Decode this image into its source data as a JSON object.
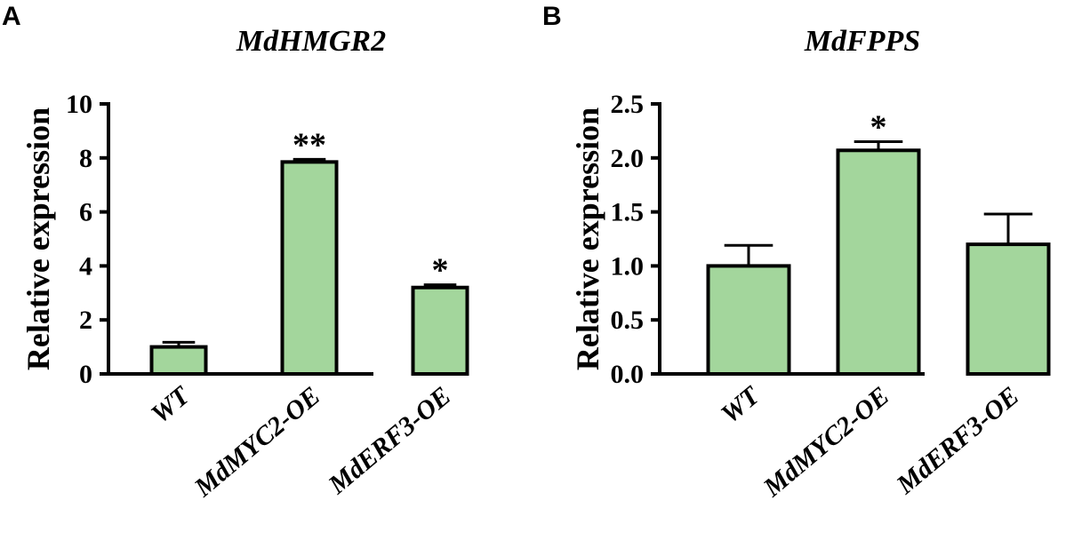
{
  "panels": [
    {
      "letter": "A",
      "chart_data": {
        "type": "bar",
        "title": "MdHMGR2",
        "xlabel": "",
        "ylabel": "Relative expression",
        "categories": [
          "WT",
          "MdMYC2-OE",
          "MdERF3-OE"
        ],
        "values": [
          1.0,
          7.85,
          3.2
        ],
        "errors": [
          0.17,
          0.1,
          0.1
        ],
        "significance": [
          "",
          "**",
          "*"
        ],
        "ylim": [
          0,
          10
        ],
        "yticks": [
          0,
          2,
          4,
          6,
          8,
          10
        ],
        "ytick_labels": [
          "0",
          "2",
          "4",
          "6",
          "8",
          "10"
        ],
        "bar_color": "#a3d69c",
        "grid": false
      }
    },
    {
      "letter": "B",
      "chart_data": {
        "type": "bar",
        "title": "MdFPPS",
        "xlabel": "",
        "ylabel": "Relative expression",
        "categories": [
          "WT",
          "MdMYC2-OE",
          "MdERF3-OE"
        ],
        "values": [
          1.0,
          2.07,
          1.2
        ],
        "errors": [
          0.19,
          0.08,
          0.28
        ],
        "significance": [
          "",
          "*",
          ""
        ],
        "ylim": [
          0,
          2.5
        ],
        "yticks": [
          0,
          0.5,
          1.0,
          1.5,
          2.0,
          2.5
        ],
        "ytick_labels": [
          "0.0",
          "0.5",
          "1.0",
          "1.5",
          "2.0",
          "2.5"
        ],
        "bar_color": "#a3d69c",
        "grid": false
      }
    }
  ]
}
